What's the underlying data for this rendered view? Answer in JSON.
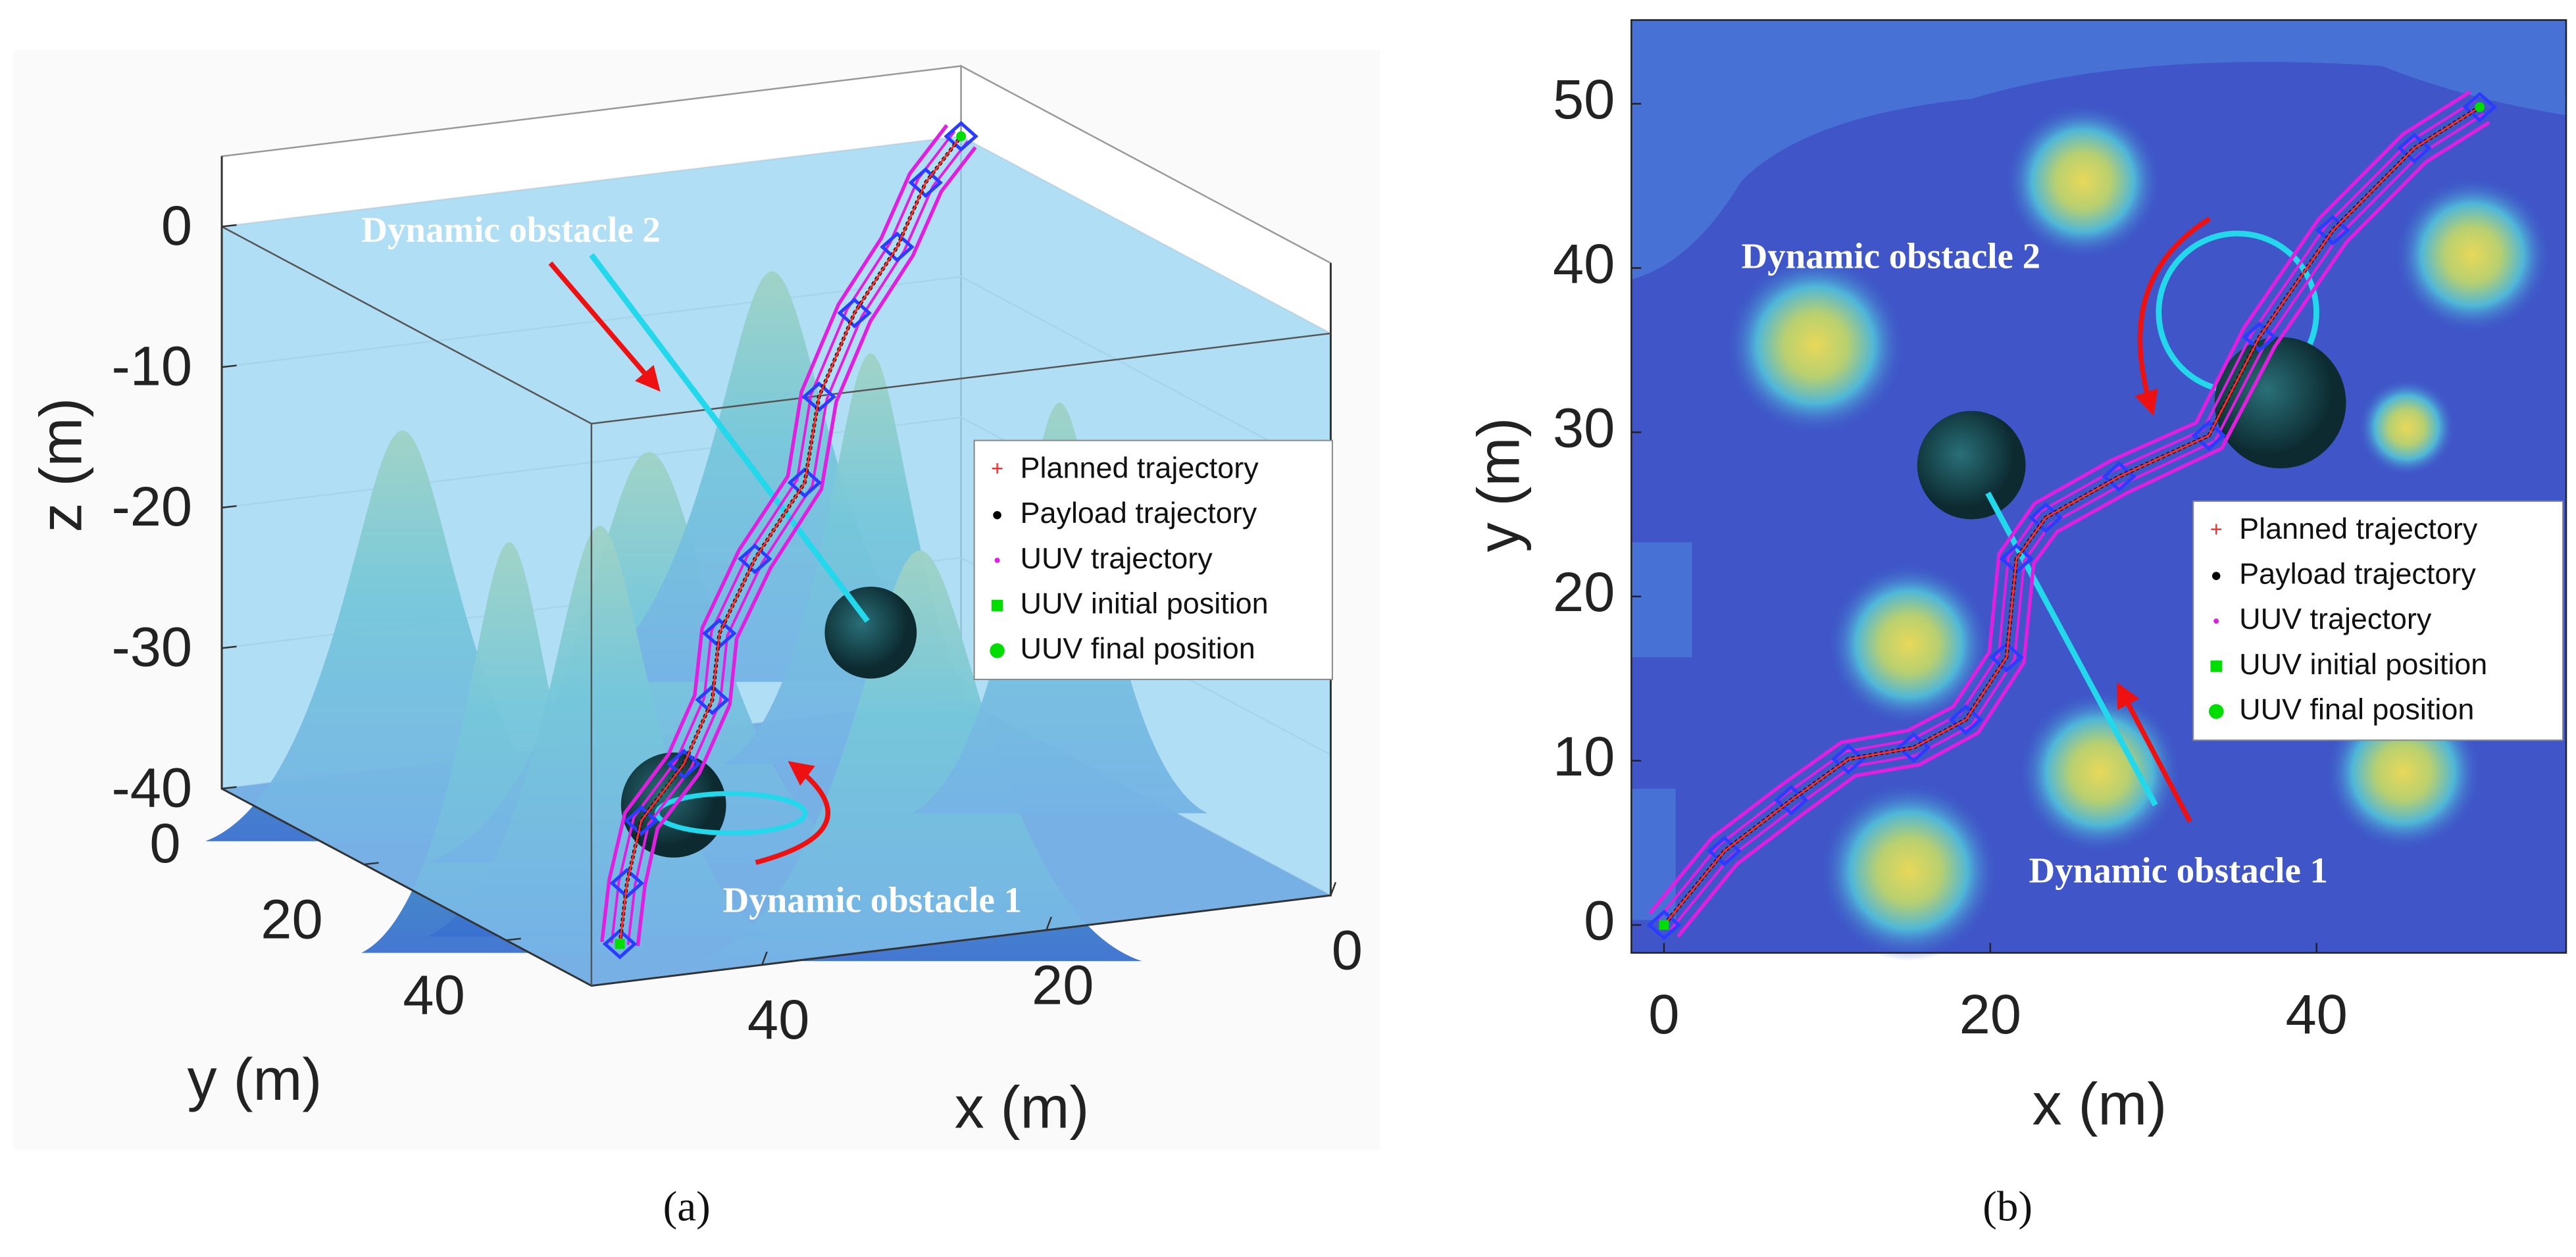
{
  "chart_data": [
    {
      "type": "line3d",
      "label": "(a)",
      "xlabel": "x (m)",
      "ylabel": "y (m)",
      "zlabel": "z (m)",
      "xlim": [
        0,
        52
      ],
      "ylim": [
        0,
        52
      ],
      "zlim": [
        -40,
        5
      ],
      "xticks": [
        0,
        20,
        40
      ],
      "yticks": [
        0,
        20,
        40
      ],
      "zticks": [
        -40,
        -30,
        -20,
        -10,
        0
      ],
      "annotations": [
        "Dynamic obstacle 2",
        "Dynamic obstacle 1"
      ],
      "x": [
        48,
        45,
        42,
        38,
        34,
        31,
        27,
        22,
        18,
        13,
        8,
        4,
        0
      ],
      "y": [
        48,
        43,
        39,
        37,
        33,
        28,
        25,
        22,
        16,
        11,
        7,
        3,
        0
      ],
      "series": [
        {
          "name": "Planned trajectory",
          "color": "#ff2a2a",
          "values": [
            -38.6,
            -36,
            -33,
            -30,
            -27,
            -24,
            -20,
            -16,
            -12,
            -8,
            -5,
            -2,
            0
          ]
        },
        {
          "name": "Payload trajectory",
          "color": "#000000",
          "values": [
            -38.6,
            -36,
            -33,
            -30,
            -27,
            -24,
            -20,
            -16,
            -12,
            -8,
            -5,
            -2,
            0
          ]
        },
        {
          "name": "UUV trajectory",
          "color": "#e020e0",
          "values": [
            -38.6,
            -36,
            -33,
            -30,
            -27,
            -24,
            -20,
            -16,
            -12,
            -8,
            -5,
            -2,
            0
          ]
        },
        {
          "name": "UUV initial position",
          "color": "#00dd00",
          "x": [
            48
          ],
          "y": [
            48
          ],
          "values": [
            -38.6
          ]
        },
        {
          "name": "UUV final position",
          "color": "#00dd00",
          "x": [
            0
          ],
          "y": [
            0
          ],
          "values": [
            0
          ]
        }
      ]
    },
    {
      "type": "line",
      "label": "(b)",
      "xlabel": "x (m)",
      "ylabel": "y (m)",
      "xlim": [
        -2,
        55.3
      ],
      "ylim": [
        -1.7,
        55.1
      ],
      "xticks": [
        0,
        20,
        40
      ],
      "yticks": [
        0,
        10,
        20,
        30,
        40,
        50
      ],
      "annotations": [
        "Dynamic obstacle 2",
        "Dynamic obstacle 1"
      ],
      "x": [
        0,
        3.7,
        7.8,
        11.3,
        15.3,
        18.5,
        21,
        21.6,
        23.4,
        27.9,
        33.4,
        36.5,
        41,
        46,
        50
      ],
      "series": [
        {
          "name": "Planned trajectory",
          "color": "#ff2a2a",
          "values": [
            0,
            4.5,
            7.6,
            10.1,
            10.8,
            12.5,
            16.3,
            22.3,
            24.8,
            27.3,
            29.8,
            35.8,
            42.3,
            47.3,
            49.8
          ]
        },
        {
          "name": "Payload trajectory",
          "color": "#000000",
          "values": [
            0,
            4.5,
            7.6,
            10.1,
            10.8,
            12.5,
            16.3,
            22.3,
            24.8,
            27.3,
            29.8,
            35.8,
            42.3,
            47.3,
            49.8
          ]
        },
        {
          "name": "UUV trajectory",
          "color": "#e020e0",
          "values": [
            0,
            4.5,
            7.6,
            10.1,
            10.8,
            12.5,
            16.3,
            22.3,
            24.8,
            27.3,
            29.8,
            35.8,
            42.3,
            47.3,
            49.8
          ]
        },
        {
          "name": "UUV initial position",
          "color": "#00dd00",
          "x": [
            0
          ],
          "values": [
            0
          ]
        },
        {
          "name": "UUV final position",
          "color": "#00dd00",
          "x": [
            50
          ],
          "values": [
            49.8
          ]
        }
      ]
    }
  ]
}
